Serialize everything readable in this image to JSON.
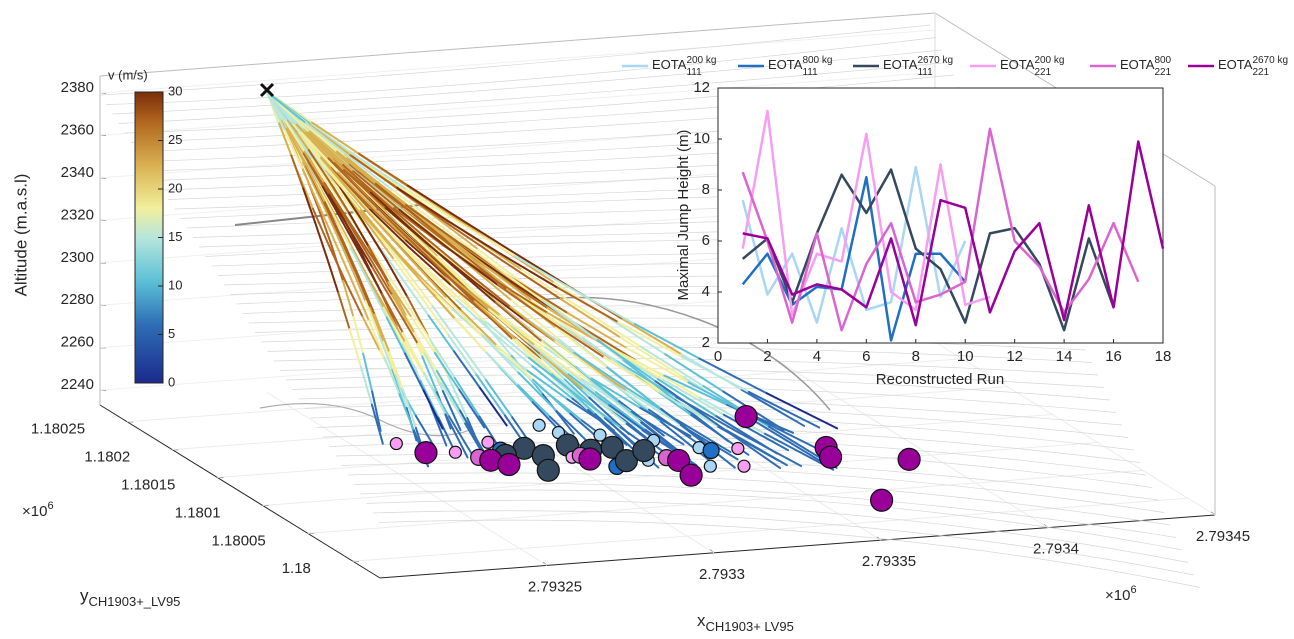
{
  "chart_data": [
    {
      "type": "scatter3d",
      "zlabel": "Altitude (m.a.s.l)",
      "xlabel": {
        "text": "x",
        "subscript": "CH1903+ LV95"
      },
      "ylabel": {
        "text": "y",
        "subscript": "CH1903+_LV95"
      },
      "x_exponent": {
        "base": "×10",
        "power": "6"
      },
      "y_exponent": {
        "base": "×10",
        "power": "6"
      },
      "xlim": [
        2.7932,
        2.79345
      ],
      "xticks": [
        2.79325,
        2.7933,
        2.79335,
        2.7934,
        2.79345
      ],
      "ylim": [
        1.17997,
        1.18028
      ],
      "yticks": [
        1.18,
        1.18005,
        1.1801,
        1.18015,
        1.1802,
        1.18025
      ],
      "zlim": [
        2233,
        2388
      ],
      "zticks": [
        2240,
        2260,
        2280,
        2300,
        2320,
        2340,
        2360,
        2380
      ],
      "colorbar": {
        "title": "v (m/s)",
        "lim": [
          0,
          30
        ],
        "ticks": [
          0,
          5,
          10,
          15,
          20,
          25,
          30
        ]
      },
      "series": [
        {
          "color": "#a9d6f5",
          "x": [
            2.793302,
            2.793304,
            2.793314,
            2.793326,
            2.793335,
            2.79333,
            2.793316
          ],
          "y": [
            1.180171,
            1.180157,
            1.180148,
            1.180133,
            1.180116,
            1.180085,
            1.180102
          ],
          "z": [
            2240,
            2240,
            2240,
            2240,
            2240,
            2240,
            2240
          ]
        },
        {
          "color": "#1f6fc5",
          "x": [
            2.793281,
            2.793337,
            2.793305
          ],
          "y": [
            1.180136,
            1.18011,
            1.180096
          ],
          "z": [
            2240,
            2240,
            2240
          ]
        },
        {
          "color": "#34495e",
          "x": [
            2.793288,
            2.79329,
            2.793301,
            2.793305,
            2.793312,
            2.79331,
            2.793319,
            2.793285,
            2.79328
          ],
          "y": [
            1.180136,
            1.180122,
            1.180136,
            1.180125,
            1.180127,
            1.180104,
            1.180118,
            1.180098,
            1.180127
          ],
          "z": [
            2240,
            2240,
            2240,
            2240,
            2240,
            2240,
            2240,
            2240,
            2240
          ]
        },
        {
          "color": "#f79df2",
          "x": [
            2.793256,
            2.793268,
            2.793281,
            2.793297,
            2.793339,
            2.793345
          ],
          "y": [
            1.180159,
            1.180138,
            1.18015,
            1.180116,
            1.180081,
            1.18011
          ],
          "z": [
            2240,
            2240,
            2240,
            2240,
            2240,
            2240
          ]
        },
        {
          "color": "#d966d0",
          "x": [
            2.793272,
            2.793322,
            2.7933
          ],
          "y": [
            1.180127,
            1.180104,
            1.180118
          ],
          "z": [
            2240,
            2240,
            2240
          ]
        },
        {
          "color": "#990099",
          "x": [
            2.793361,
            2.79326,
            2.793274,
            2.793277,
            2.793301,
            2.793324,
            2.793321,
            2.793369,
            2.793366,
            2.793386,
            2.793361
          ],
          "y": [
            1.18016,
            1.180141,
            1.180121,
            1.180112,
            1.180111,
            1.180098,
            1.180073,
            1.180101,
            1.180085,
            1.180072,
            1.18001
          ],
          "z": [
            2240,
            2240,
            2240,
            2240,
            2240,
            2240,
            2240,
            2240,
            2240,
            2240,
            2240
          ]
        }
      ]
    },
    {
      "type": "line",
      "xlabel": "Reconstructed Run",
      "ylabel": "Maximal Jump Height (m)",
      "xlim": [
        0,
        18
      ],
      "xticks": [
        0,
        2,
        4,
        6,
        8,
        10,
        12,
        14,
        16,
        18
      ],
      "ylim": [
        2,
        12
      ],
      "yticks": [
        2,
        4,
        6,
        8,
        10,
        12
      ],
      "series": [
        {
          "name": "EOTA",
          "name_sup": "200 kg",
          "name_sub": "111",
          "color": "#a9d6f5",
          "x": [
            1,
            2,
            3,
            4,
            5,
            6,
            7,
            8,
            9,
            10
          ],
          "values": [
            7.6,
            3.9,
            5.5,
            2.8,
            6.5,
            3.3,
            3.6,
            8.9,
            3.8,
            6.0
          ]
        },
        {
          "name": "EOTA",
          "name_sup": "800 kg",
          "name_sub": "111",
          "color": "#1f6fc5",
          "x": [
            1,
            2,
            3,
            4,
            5,
            6,
            7,
            8,
            9,
            10
          ],
          "values": [
            4.3,
            5.5,
            3.5,
            4.2,
            4.1,
            8.5,
            2.1,
            5.5,
            5.5,
            4.4
          ]
        },
        {
          "name": "EOTA",
          "name_sup": "2670 kg",
          "name_sub": "111",
          "color": "#34495e",
          "x": [
            1,
            2,
            3,
            4,
            5,
            6,
            7,
            8,
            9,
            10,
            11,
            12,
            13,
            14,
            15,
            16
          ],
          "values": [
            5.3,
            6.1,
            3.6,
            6.3,
            8.6,
            7.1,
            8.8,
            5.7,
            4.9,
            2.8,
            6.3,
            6.5,
            5.1,
            2.5,
            6.1,
            3.4
          ]
        },
        {
          "name": "EOTA",
          "name_sup": "200 kg",
          "name_sub": "221",
          "color": "#f79df2",
          "x": [
            1,
            2,
            3,
            4,
            5,
            6,
            7,
            8,
            9,
            10,
            11
          ],
          "values": [
            5.7,
            11.1,
            3.1,
            5.5,
            5.2,
            10.2,
            4.0,
            3.3,
            9.0,
            3.5,
            3.8
          ]
        },
        {
          "name": "EOTA",
          "name_sup": "800",
          "name_sub": "221",
          "color": "#d966d0",
          "x": [
            1,
            2,
            3,
            4,
            5,
            6,
            7,
            8,
            9,
            10,
            11,
            12,
            13,
            14,
            15,
            16,
            17
          ],
          "values": [
            8.7,
            6.0,
            2.8,
            6.3,
            2.5,
            5.1,
            6.7,
            3.6,
            3.9,
            4.4,
            10.4,
            6.0,
            5.0,
            3.2,
            4.5,
            6.7,
            4.4
          ]
        },
        {
          "name": "EOTA",
          "name_sup": "2670 kg",
          "name_sub": "221",
          "color": "#990099",
          "x": [
            1,
            2,
            3,
            4,
            5,
            6,
            7,
            8,
            9,
            10,
            11,
            12,
            13,
            14,
            15,
            16,
            17,
            18
          ],
          "values": [
            6.3,
            6.1,
            3.9,
            4.3,
            4.1,
            3.4,
            6.1,
            2.7,
            7.6,
            7.3,
            3.2,
            5.6,
            6.7,
            2.9,
            7.4,
            3.4,
            9.9,
            5.7
          ]
        }
      ]
    }
  ]
}
